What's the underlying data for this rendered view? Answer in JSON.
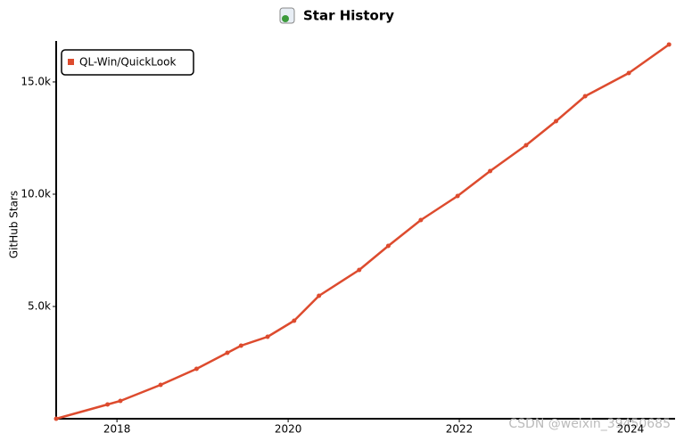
{
  "chart_data": {
    "type": "line",
    "title": "Star History",
    "y_label": "GitHub Stars",
    "x": [
      2017.29,
      2017.89,
      2018.04,
      2018.51,
      2018.93,
      2019.29,
      2019.45,
      2019.76,
      2020.07,
      2020.36,
      2020.83,
      2021.17,
      2021.55,
      2021.98,
      2022.36,
      2022.78,
      2023.13,
      2023.47,
      2023.98,
      2024.45
    ],
    "series": [
      {
        "name": "QL-Win/QuickLook",
        "color": "#dd4b2e",
        "values": [
          0,
          635,
          794,
          1508,
          2222,
          2937,
          3254,
          3651,
          4365,
          5476,
          6627,
          7698,
          8849,
          9921,
          11032,
          12183,
          13254,
          14365,
          15397,
          16667
        ]
      }
    ],
    "xlim": [
      2017.29,
      2024.5
    ],
    "xticks": [
      2018,
      2020,
      2022,
      2024
    ],
    "ylim": [
      0,
      16800
    ],
    "yticks": [
      {
        "value": 5000,
        "label": "5.0k"
      },
      {
        "value": 10000,
        "label": "10.0k"
      },
      {
        "value": 15000,
        "label": "15.0k"
      }
    ],
    "legend": "top-left",
    "watermark": "CSDN @weixin_39450685"
  }
}
